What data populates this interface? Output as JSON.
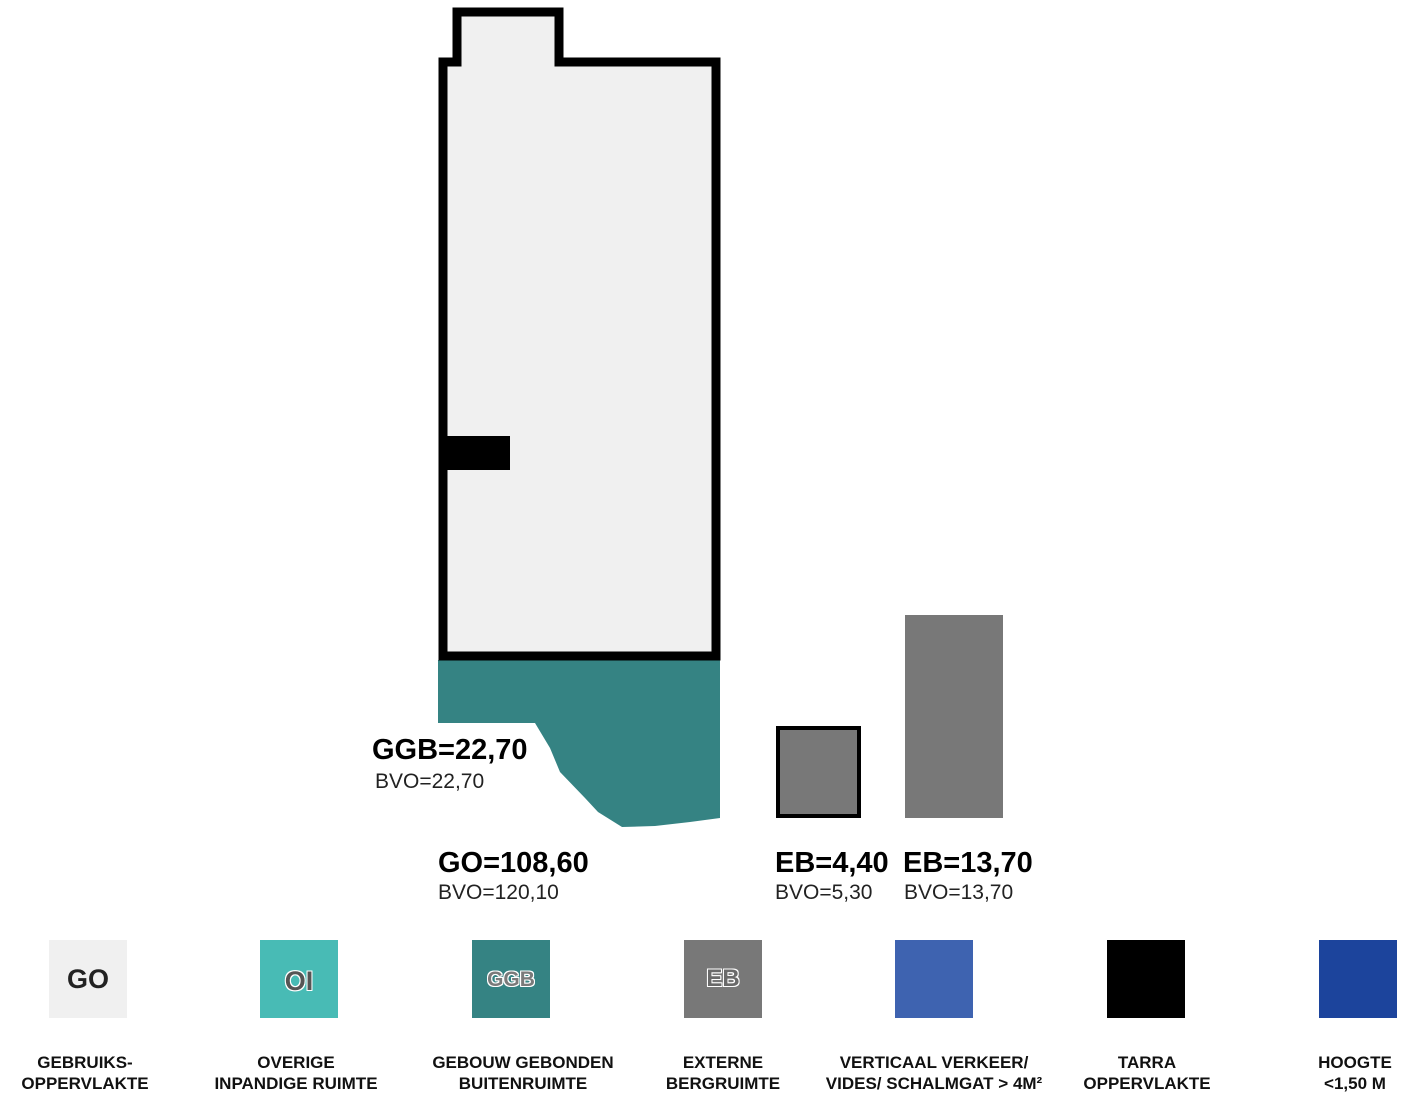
{
  "areas": {
    "ggb": {
      "title": "GGB=22,70",
      "bvo": "BVO=22,70"
    },
    "go": {
      "title": "GO=108,60",
      "bvo": "BVO=120,10"
    },
    "eb1": {
      "title": "EB=4,40",
      "bvo": "BVO=5,30"
    },
    "eb2": {
      "title": "EB=13,70",
      "bvo": "BVO=13,70"
    }
  },
  "legend": [
    {
      "code": "GO",
      "label_line1": "GEBRUIKS-",
      "label_line2": "OPPERVLAKTE",
      "color": "#f0f0f0"
    },
    {
      "code": "OI",
      "label_line1": "OVERIGE",
      "label_line2": "INPANDIGE RUIMTE",
      "color": "#48bbb5"
    },
    {
      "code": "GGB",
      "label_line1": "GEBOUW GEBONDEN",
      "label_line2": "BUITENRUIMTE",
      "color": "#358383"
    },
    {
      "code": "EB",
      "label_line1": "EXTERNE",
      "label_line2": "BERGRUIMTE",
      "color": "#787878"
    },
    {
      "code": "",
      "label_line1": "VERTICAAL VERKEER/",
      "label_line2": "VIDES/ SCHALMGAT > 4M²",
      "color": "#3e63b0"
    },
    {
      "code": "",
      "label_line1": "TARRA",
      "label_line2": "OPPERVLAKTE",
      "color": "#000000"
    },
    {
      "code": "",
      "label_line1": "HOOGTE",
      "label_line2": "<1,50 M",
      "color": "#1c449c"
    }
  ],
  "colors": {
    "go_fill": "#f0f0f0",
    "ggb_fill": "#358383",
    "eb_fill": "#787878",
    "wall": "#000000"
  }
}
